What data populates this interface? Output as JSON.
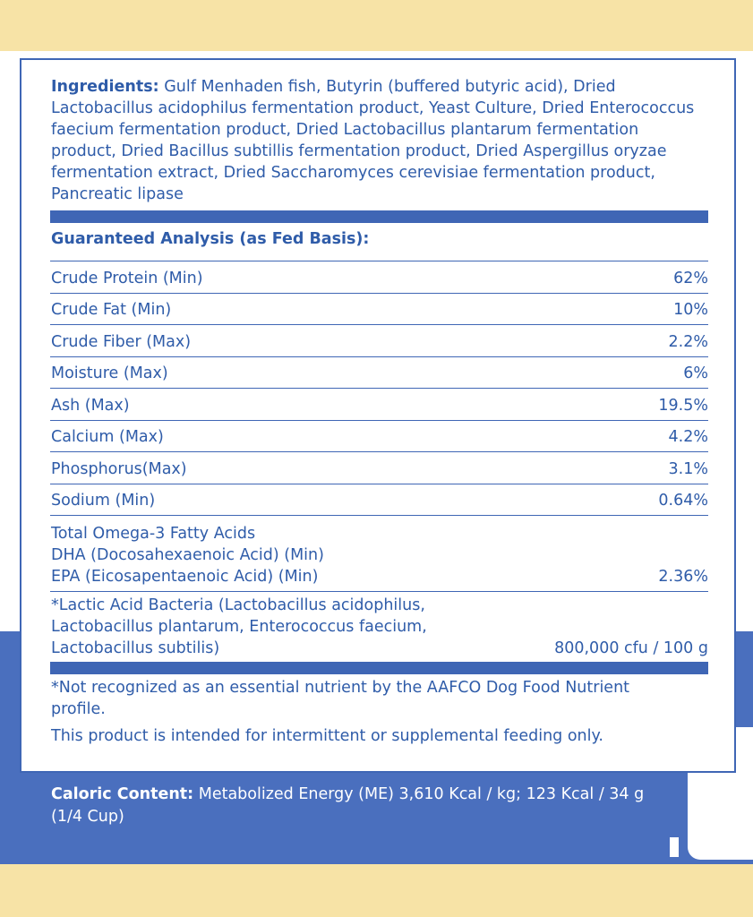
{
  "ingredients": {
    "label": "Ingredients:",
    "text": "Gulf Menhaden fish, Butyrin (buffered butyric acid), Dried Lactobacillus acidophilus fermentation product, Yeast Culture, Dried Enterococcus faecium fermentation product, Dried Lactobacillus plantarum fermentation product, Dried Bacillus subtillis fermentation product, Dried Aspergillus oryzae fermentation extract, Dried Saccharomyces cerevisiae fermentation product, Pancreatic lipase"
  },
  "analysis": {
    "title": "Guaranteed Analysis (as Fed Basis):",
    "rows": [
      {
        "name": "Crude Protein (Min)",
        "value": "62%"
      },
      {
        "name": "Crude Fat (Min)",
        "value": "10%"
      },
      {
        "name": "Crude Fiber (Max)",
        "value": "2.2%"
      },
      {
        "name": "Moisture (Max)",
        "value": "6%"
      },
      {
        "name": "Ash (Max)",
        "value": "19.5%"
      },
      {
        "name": "Calcium (Max)",
        "value": "4.2%"
      },
      {
        "name": "Phosphorus(Max)",
        "value": "3.1%"
      },
      {
        "name": "Sodium (Min)",
        "value": "0.64%"
      }
    ],
    "omega": {
      "lines": [
        "Total Omega-3 Fatty Acids",
        "DHA (Docosahexaenoic Acid) (Min)",
        "EPA (Eicosapentaenoic Acid) (Min)"
      ],
      "value": "2.36%"
    },
    "bacteria": {
      "lines": [
        "*Lactic Acid Bacteria (Lactobacillus acidophilus,",
        "Lactobacillus plantarum, Enterococcus faecium,",
        "Lactobacillus subtilis)"
      ],
      "value": "800,000 cfu / 100 g"
    }
  },
  "notes": [
    "*Not recognized as an essential nutrient by the AAFCO Dog Food Nutrient profile.",
    "This product is intended for intermittent or supplemental feeding only."
  ],
  "caloric": {
    "label": "Caloric Content:",
    "text": "Metabolized Energy (ME) 3,610 Kcal / kg; 123 Kcal / 34 g (1/4 Cup)"
  }
}
